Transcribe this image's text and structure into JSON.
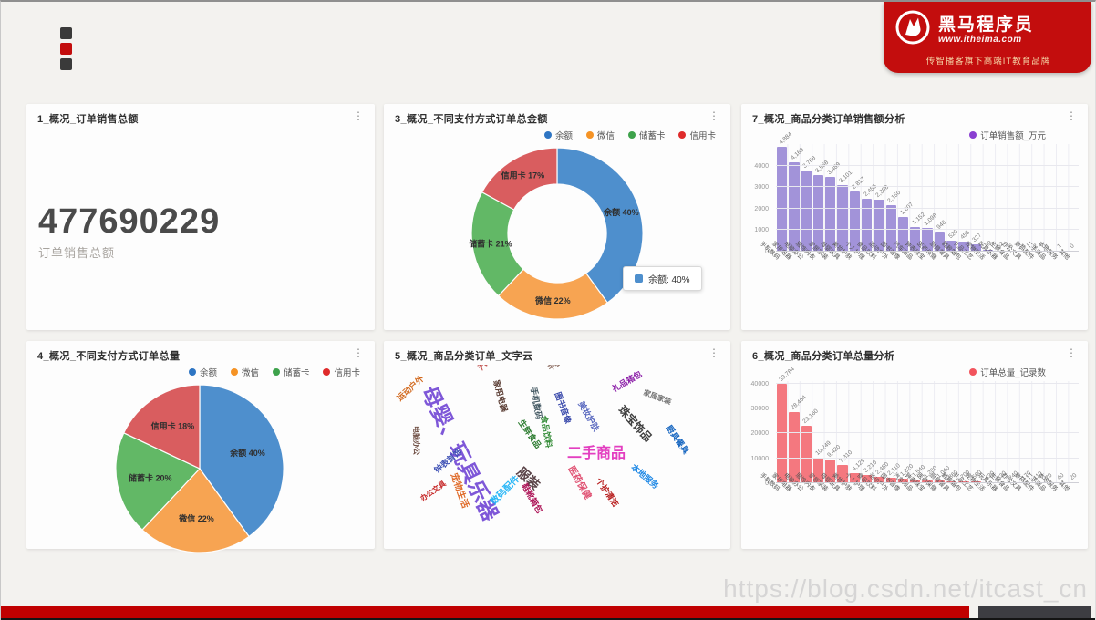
{
  "ui": {
    "menu_glyph": "⋮"
  },
  "colors": {
    "brand-red": "#c30d0d",
    "footer-red": "#c00000",
    "footer-dark": "#3d3d42"
  },
  "brand": {
    "name": "黑马程序员",
    "url": "www.itheima.com",
    "slogan": "传智播客旗下高端IT教育品牌"
  },
  "watermark": "https://blog.csdn.net/itcast_cn",
  "panels": {
    "kpi": {
      "title": "1_概况_订单销售总额",
      "value": "477690229",
      "label": "订单销售总额"
    },
    "donut": {
      "title": "3_概况_不同支付方式订单总金额",
      "tooltip": "余额: 40%"
    },
    "bar_sales": {
      "title": "7_概况_商品分类订单销售额分析"
    },
    "pie": {
      "title": "4_概况_不同支付方式订单总量"
    },
    "cloud": {
      "title": "5_概况_商品分类订单_文字云"
    },
    "bar_count": {
      "title": "6_概况_商品分类订单总量分析"
    }
  },
  "chart_data": [
    {
      "id": "donut",
      "type": "pie",
      "variant": "donut",
      "title": "3_概况_不同支付方式订单总金额",
      "legend_position": "top-right",
      "label_format": "{name} {value}%",
      "series": [
        {
          "name": "余额",
          "value": 40,
          "color": "#4e8fcd",
          "legend_color": "#2e75c3"
        },
        {
          "name": "微信",
          "value": 22,
          "color": "#f7a452",
          "legend_color": "#f59325"
        },
        {
          "name": "储蓄卡",
          "value": 21,
          "color": "#62b866",
          "legend_color": "#3da24b"
        },
        {
          "name": "信用卡",
          "value": 17,
          "color": "#d95d5f",
          "legend_color": "#df2b2b"
        }
      ]
    },
    {
      "id": "pie",
      "type": "pie",
      "variant": "pie",
      "title": "4_概况_不同支付方式订单总量",
      "legend_position": "top-right",
      "label_format": "{name} {value}%",
      "series": [
        {
          "name": "余额",
          "value": 40,
          "color": "#4e8fcd",
          "legend_color": "#2e75c3"
        },
        {
          "name": "微信",
          "value": 22,
          "color": "#f7a452",
          "legend_color": "#f59325"
        },
        {
          "name": "储蓄卡",
          "value": 20,
          "color": "#62b866",
          "legend_color": "#3da24b"
        },
        {
          "name": "信用卡",
          "value": 18,
          "color": "#d95d5f",
          "legend_color": "#df2b2b"
        }
      ]
    },
    {
      "id": "bar_sales",
      "type": "bar",
      "title": "7_概况_商品分类订单销售额分析",
      "series_name": "订单销售额_万元",
      "color": "#a293d9",
      "legend_color": "#8a3fd1",
      "ylim": [
        0,
        5000
      ],
      "yticks": [
        0,
        1000,
        2000,
        3000,
        4000
      ],
      "xlabel_rotate": 45,
      "grid": true,
      "legend_position": "top-right",
      "categories": [
        "手机数码",
        "家用电器",
        "电脑办公",
        "服饰内衣",
        "家居家装",
        "母婴玩具",
        "美妆护肤",
        "个人护理",
        "食品饮料",
        "运动户外",
        "图书音像",
        "汽车用品",
        "钟表珠宝",
        "医药保健",
        "厨具餐具",
        "鞋靴箱包",
        "礼品工艺",
        "宠物生活",
        "玩具乐器",
        "生鲜食品",
        "办公文具",
        "数码配件",
        "二手商品",
        "本地服务",
        "其他"
      ],
      "values": [
        4884,
        4168,
        3768,
        3568,
        3489,
        3101,
        2817,
        2455,
        2398,
        2150,
        1607,
        1152,
        1098,
        948,
        520,
        455,
        327,
        98,
        52,
        6,
        4,
        2,
        1,
        1,
        0
      ]
    },
    {
      "id": "bar_count",
      "type": "bar",
      "title": "6_概况_商品分类订单总量分析",
      "series_name": "订单总量_记录数",
      "color": "#f4787f",
      "legend_color": "#f2545d",
      "ylim": [
        0,
        41000
      ],
      "yticks": [
        0,
        10000,
        20000,
        30000,
        40000
      ],
      "xlabel_rotate": 45,
      "grid": true,
      "legend_position": "top-right",
      "categories": [
        "手机数码",
        "家用电器",
        "电脑办公",
        "服饰内衣",
        "家居家装",
        "母婴玩具",
        "美妆护肤",
        "个人护理",
        "食品饮料",
        "运动户外",
        "图书音像",
        "汽车用品",
        "钟表珠宝",
        "医药保健",
        "厨具餐具",
        "鞋靴箱包",
        "礼品工艺",
        "宠物生活",
        "玩具乐器",
        "生鲜食品",
        "办公文具",
        "数码配件",
        "二手商品",
        "本地服务",
        "其他"
      ],
      "values": [
        39784,
        28464,
        23160,
        10249,
        9420,
        7310,
        4125,
        3210,
        2480,
        2110,
        1820,
        1540,
        1280,
        1040,
        860,
        700,
        560,
        430,
        330,
        240,
        170,
        110,
        70,
        40,
        20
      ]
    },
    {
      "id": "cloud",
      "type": "wordcloud",
      "title": "5_概况_商品分类订单_文字云",
      "words": [
        {
          "text": "母婴、玩具乐器",
          "x": 14,
          "y": 10,
          "rot": 64,
          "size": 23,
          "color": "#7e57d8",
          "bold": true
        },
        {
          "text": "二手商品",
          "x": 53,
          "y": 46,
          "rot": 0,
          "size": 16,
          "color": "#e33fc0",
          "bold": true
        },
        {
          "text": "服装",
          "x": 40,
          "y": 56,
          "rot": 42,
          "size": 14,
          "color": "#5a4348",
          "bold": true
        },
        {
          "text": "珠宝饰品",
          "x": 70,
          "y": 22,
          "rot": 48,
          "size": 12,
          "color": "#3f3f3f",
          "bold": false
        },
        {
          "text": "汽车用品",
          "x": 26,
          "y": 1,
          "rot": -48,
          "size": 9,
          "color": "#c0504d",
          "bold": false
        },
        {
          "text": "运动户外",
          "x": 2,
          "y": 18,
          "rot": -42,
          "size": 9,
          "color": "#d2691e",
          "bold": false
        },
        {
          "text": "电脑办公",
          "x": 9,
          "y": 34,
          "rot": 90,
          "size": 8,
          "color": "#6d4c41",
          "bold": false
        },
        {
          "text": "家用电器",
          "x": 33,
          "y": 8,
          "rot": 75,
          "size": 9,
          "color": "#5d4037",
          "bold": false
        },
        {
          "text": "手机数码",
          "x": 44,
          "y": 12,
          "rot": 80,
          "size": 9,
          "color": "#455a64",
          "bold": false
        },
        {
          "text": "图书音像",
          "x": 51,
          "y": 15,
          "rot": 70,
          "size": 9,
          "color": "#3949ab",
          "bold": false
        },
        {
          "text": "生鲜食品",
          "x": 40,
          "y": 30,
          "rot": 55,
          "size": 9,
          "color": "#2e7d32",
          "bold": false
        },
        {
          "text": "食品饮料",
          "x": 47,
          "y": 28,
          "rot": 80,
          "size": 9,
          "color": "#388e3c",
          "bold": false
        },
        {
          "text": "美妆护肤",
          "x": 58,
          "y": 20,
          "rot": 60,
          "size": 9,
          "color": "#5c6bc0",
          "bold": false
        },
        {
          "text": "礼品箱包",
          "x": 66,
          "y": 12,
          "rot": -30,
          "size": 9,
          "color": "#8e24aa",
          "bold": false
        },
        {
          "text": "家居家装",
          "x": 76,
          "y": 14,
          "rot": 20,
          "size": 8,
          "color": "#757575",
          "bold": false
        },
        {
          "text": "厨具餐具",
          "x": 84,
          "y": 33,
          "rot": 55,
          "size": 9,
          "color": "#1565c0",
          "bold": false
        },
        {
          "text": "医药保健",
          "x": 55,
          "y": 56,
          "rot": 60,
          "size": 10,
          "color": "#e05273",
          "bold": false
        },
        {
          "text": "个护清洁",
          "x": 63,
          "y": 63,
          "rot": 55,
          "size": 9,
          "color": "#b71c1c",
          "bold": false
        },
        {
          "text": "钟表首饰",
          "x": 13,
          "y": 58,
          "rot": -40,
          "size": 9,
          "color": "#3f51b5",
          "bold": false
        },
        {
          "text": "宠物生活",
          "x": 20,
          "y": 60,
          "rot": 70,
          "size": 10,
          "color": "#e06c2b",
          "bold": false
        },
        {
          "text": "数码配件",
          "x": 30,
          "y": 76,
          "rot": -45,
          "size": 10,
          "color": "#29b6f6",
          "bold": false
        },
        {
          "text": "鞋靴箱包",
          "x": 41,
          "y": 66,
          "rot": 60,
          "size": 9,
          "color": "#ad1457",
          "bold": false
        },
        {
          "text": "办公文具",
          "x": 9,
          "y": 74,
          "rot": -35,
          "size": 8,
          "color": "#c62828",
          "bold": false
        },
        {
          "text": "本地服务",
          "x": 73,
          "y": 55,
          "rot": 40,
          "size": 9,
          "color": "#1e88e5",
          "bold": false
        },
        {
          "text": "平板电视",
          "x": 47,
          "y": 1,
          "rot": -35,
          "size": 8,
          "color": "#8d6e63",
          "bold": false
        }
      ]
    }
  ]
}
